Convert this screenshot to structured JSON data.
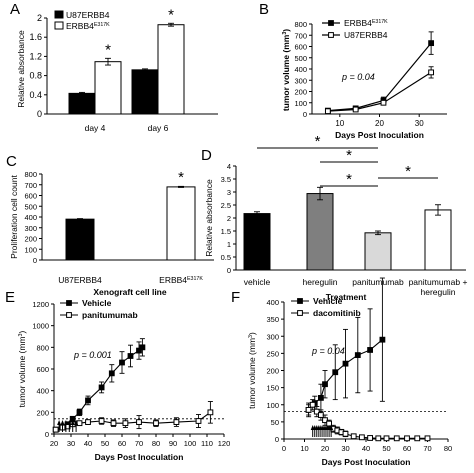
{
  "panel_labels": [
    "A",
    "B",
    "C",
    "D",
    "E",
    "F"
  ],
  "significance_marker": "*",
  "colors": {
    "black": "#000000",
    "white": "#ffffff",
    "dark_grey": "#7f7f7f",
    "light_grey": "#d9d9d9"
  },
  "chart_data": [
    {
      "panel": "A",
      "type": "bar",
      "ylabel": "Relative absorbance",
      "categories": [
        "day 4",
        "day 6"
      ],
      "yticks": [
        "0",
        "0.4",
        "0.8",
        "1.2",
        "1.6",
        "2"
      ],
      "ylim": [
        0,
        2
      ],
      "legend": [
        {
          "text": "U87ERBB4",
          "sup": ""
        },
        {
          "text": "ERBB4",
          "sup": "E317K"
        }
      ],
      "series": [
        {
          "name": "U87ERBB4",
          "color": "#000000",
          "values": [
            0.43,
            0.92
          ],
          "errors": [
            0.02,
            0.02
          ]
        },
        {
          "name": "ERBB4E317K",
          "color": "#ffffff",
          "values": [
            1.09,
            1.86
          ],
          "errors": [
            0.07,
            0.03
          ]
        }
      ],
      "significant": [
        true,
        true
      ]
    },
    {
      "panel": "B",
      "type": "line",
      "ylabel": "tumor volume (mm3)",
      "xlabel": "Days Post Inoculation",
      "xticks": [
        "10",
        "20",
        "30"
      ],
      "yticks": [
        "0",
        "100",
        "200",
        "300",
        "400",
        "500",
        "600",
        "700",
        "800"
      ],
      "xlim": [
        3,
        37
      ],
      "ylim": [
        0,
        800
      ],
      "annotation": "p = 0.04",
      "legend": [
        {
          "text": "ERBB4",
          "sup": "E317K"
        },
        {
          "text": "U87ERBB4",
          "sup": ""
        }
      ],
      "series": [
        {
          "name": "ERBB4E317K",
          "marker": "filled",
          "x": [
            7,
            14,
            21,
            33
          ],
          "y": [
            30,
            50,
            120,
            630
          ],
          "errors": [
            10,
            10,
            30,
            100
          ]
        },
        {
          "name": "U87ERBB4",
          "marker": "open",
          "x": [
            7,
            14,
            21,
            33
          ],
          "y": [
            25,
            40,
            100,
            370
          ],
          "errors": [
            10,
            10,
            20,
            50
          ]
        }
      ]
    },
    {
      "panel": "C",
      "type": "bar",
      "ylabel": "Proliferation cell count",
      "xlabel": "Xenograft cell line",
      "categories": [
        {
          "text": "U87ERBB4",
          "sup": ""
        },
        {
          "text": "ERBB4",
          "sup": "E317K"
        }
      ],
      "yticks": [
        "0",
        "100",
        "200",
        "300",
        "400",
        "500",
        "600",
        "700",
        "800"
      ],
      "ylim": [
        0,
        800
      ],
      "values": [
        380,
        680
      ],
      "errors": [
        5,
        5
      ],
      "colors": [
        "#000000",
        "#ffffff"
      ],
      "significant": [
        false,
        true
      ]
    },
    {
      "panel": "D",
      "type": "bar",
      "ylabel": "Relative absorbance",
      "xlabel": "Treatment",
      "categories": [
        [
          "vehicle"
        ],
        [
          "heregulin"
        ],
        [
          "panitumumab"
        ],
        [
          "panitumumab +",
          "heregulin"
        ]
      ],
      "yticks": [
        "0",
        "0.5",
        "1",
        "1.5",
        "2",
        "2.5",
        "3",
        "3.5",
        "4"
      ],
      "ylim": [
        0,
        4
      ],
      "values": [
        2.17,
        2.94,
        1.43,
        2.31
      ],
      "errors": [
        0.07,
        0.24,
        0.07,
        0.2
      ],
      "colors": [
        "#000000",
        "#7f7f7f",
        "#d9d9d9",
        "#ffffff"
      ],
      "comparisons": [
        [
          0,
          2
        ],
        [
          1,
          2
        ],
        [
          2,
          3
        ],
        [
          1,
          2
        ]
      ]
    },
    {
      "panel": "E",
      "type": "line",
      "ylabel": "tumor volume (mm3)",
      "xlabel": "Days Post Inoculation",
      "xticks": [
        "20",
        "30",
        "40",
        "50",
        "60",
        "70",
        "80",
        "90",
        "100",
        "110",
        "120"
      ],
      "yticks": [
        "0",
        "200",
        "400",
        "600",
        "800",
        "1000",
        "1200"
      ],
      "xlim": [
        20,
        120
      ],
      "ylim": [
        0,
        1200
      ],
      "annotation": "p = 0.001",
      "legend": [
        {
          "text": "Vehicle",
          "marker": "filled"
        },
        {
          "text": "panitumumab",
          "marker": "open"
        }
      ],
      "dose_days": [
        23,
        25,
        27,
        29,
        31,
        33
      ],
      "baseline": 140,
      "series": [
        {
          "name": "Vehicle",
          "marker": "filled",
          "x": [
            21,
            25,
            28,
            31,
            35,
            40,
            48,
            54,
            60,
            65,
            70,
            72
          ],
          "y": [
            40,
            60,
            90,
            140,
            200,
            310,
            430,
            560,
            660,
            720,
            770,
            800
          ],
          "errors": [
            10,
            10,
            20,
            20,
            30,
            40,
            50,
            80,
            100,
            100,
            80,
            80
          ]
        },
        {
          "name": "panitumumab",
          "marker": "open",
          "x": [
            21,
            25,
            28,
            31,
            35,
            40,
            48,
            55,
            62,
            70,
            80,
            92,
            105,
            112
          ],
          "y": [
            40,
            60,
            70,
            90,
            100,
            110,
            120,
            100,
            100,
            110,
            100,
            110,
            120,
            200
          ],
          "errors": [
            10,
            10,
            15,
            15,
            20,
            20,
            30,
            30,
            40,
            60,
            30,
            40,
            60,
            100
          ]
        }
      ]
    },
    {
      "panel": "F",
      "type": "line",
      "ylabel": "tumor volume (mm3)",
      "xlabel": "Days Post Inoculation",
      "xticks": [
        "0",
        "10",
        "20",
        "30",
        "40",
        "50",
        "60",
        "70",
        "80"
      ],
      "yticks": [
        "0",
        "50",
        "100",
        "150",
        "200",
        "250",
        "300",
        "350",
        "400"
      ],
      "xlim": [
        0,
        80
      ],
      "ylim": [
        0,
        400
      ],
      "annotation": "p = 0.04",
      "legend": [
        {
          "text": "Vehicle",
          "marker": "filled"
        },
        {
          "text": "dacomitinib",
          "marker": "open"
        }
      ],
      "dose_days": [
        14,
        15,
        16,
        17,
        18,
        19,
        20,
        21,
        22,
        23
      ],
      "baseline": 80,
      "series": [
        {
          "name": "Vehicle",
          "marker": "filled",
          "x": [
            12,
            15,
            18,
            20,
            25,
            30,
            36,
            42,
            48
          ],
          "y": [
            85,
            105,
            120,
            160,
            195,
            220,
            245,
            260,
            290
          ],
          "errors": [
            20,
            20,
            40,
            40,
            80,
            100,
            110,
            120,
            180
          ]
        },
        {
          "name": "dacomitinib",
          "marker": "open",
          "x": [
            12,
            14,
            16,
            18,
            20,
            22,
            24,
            26,
            28,
            30,
            34,
            38,
            42,
            46,
            50,
            55,
            60,
            65,
            70
          ],
          "y": [
            85,
            100,
            80,
            70,
            55,
            45,
            30,
            25,
            20,
            15,
            8,
            5,
            3,
            2,
            2,
            2,
            2,
            2,
            2
          ],
          "errors": [
            15,
            15,
            15,
            15,
            15,
            10,
            10,
            10,
            8,
            8,
            5,
            3,
            2,
            2,
            1,
            1,
            1,
            1,
            1
          ]
        }
      ]
    }
  ]
}
